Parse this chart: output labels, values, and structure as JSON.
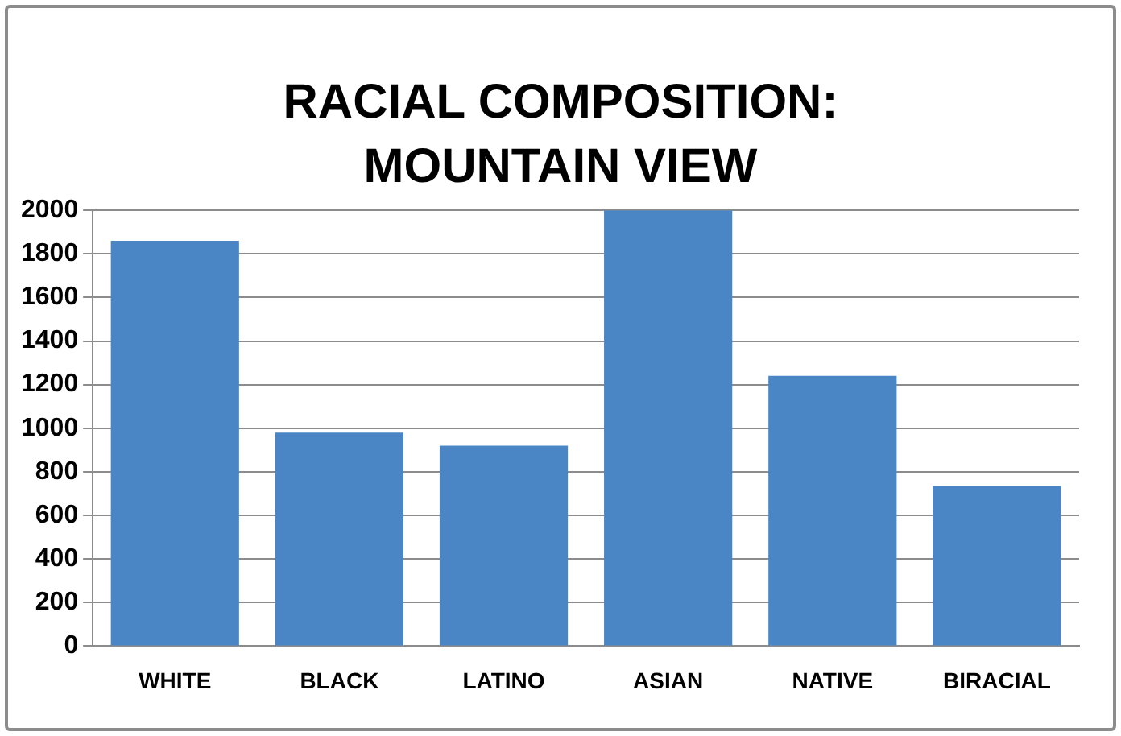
{
  "chart_data": {
    "type": "bar",
    "title": "RACIAL COMPOSITION: MOUNTAIN VIEW",
    "categories": [
      "WHITE",
      "BLACK",
      "LATINO",
      "ASIAN",
      "NATIVE",
      "BIRACIAL"
    ],
    "values": [
      1860,
      980,
      920,
      2000,
      1240,
      735
    ],
    "color": "#4a86c5",
    "ylim": [
      0,
      2000
    ],
    "yticks": [
      0,
      200,
      400,
      600,
      800,
      1000,
      1200,
      1400,
      1600,
      1800,
      2000
    ],
    "grid": "y",
    "legend": false
  }
}
